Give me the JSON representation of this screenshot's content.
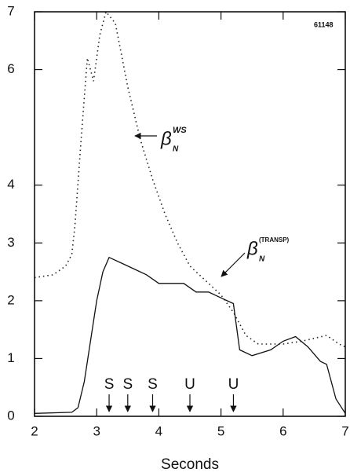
{
  "chart_data": {
    "type": "line",
    "xlabel": "Seconds",
    "id_label": "61148",
    "xlim": [
      2,
      7
    ],
    "xticks": [
      2,
      3,
      4,
      5,
      6,
      7
    ],
    "ylim": [
      0,
      7
    ],
    "yticks": [
      0,
      1,
      2,
      3,
      4,
      6,
      7
    ],
    "series": [
      {
        "name": {
          "symbol": "β",
          "sub": "N",
          "sup": "WS"
        },
        "color": "#222",
        "style": "dotted",
        "x": [
          2.0,
          2.3,
          2.5,
          2.6,
          2.65,
          2.75,
          2.85,
          2.95,
          3.05,
          3.15,
          3.3,
          3.5,
          3.7,
          3.9,
          4.1,
          4.3,
          4.5,
          4.8,
          5.0,
          5.2,
          5.4,
          5.6,
          6.0,
          6.3,
          6.7,
          6.9,
          7.0
        ],
        "values": [
          2.4,
          2.45,
          2.6,
          2.8,
          3.3,
          4.8,
          6.2,
          5.8,
          6.6,
          7.0,
          6.8,
          5.7,
          4.8,
          4.1,
          3.5,
          3.0,
          2.6,
          2.3,
          2.1,
          1.8,
          1.4,
          1.25,
          1.25,
          1.3,
          1.4,
          1.25,
          1.2
        ]
      },
      {
        "name": {
          "symbol": "β",
          "sub": "N",
          "sup": "(TRANSP)"
        },
        "color": "#111",
        "style": "solid",
        "x": [
          2.0,
          2.6,
          2.7,
          2.8,
          2.9,
          3.0,
          3.1,
          3.2,
          3.4,
          3.6,
          3.8,
          4.0,
          4.2,
          4.4,
          4.6,
          4.8,
          5.0,
          5.2,
          5.3,
          5.5,
          5.8,
          6.0,
          6.2,
          6.4,
          6.6,
          6.7,
          6.85,
          7.0
        ],
        "values": [
          0.05,
          0.07,
          0.15,
          0.6,
          1.3,
          2.0,
          2.5,
          2.75,
          2.65,
          2.55,
          2.45,
          2.3,
          2.3,
          2.3,
          2.15,
          2.15,
          2.05,
          1.95,
          1.15,
          1.05,
          1.15,
          1.3,
          1.38,
          1.2,
          0.95,
          0.9,
          0.3,
          0.05
        ]
      }
    ],
    "markers": [
      {
        "label": "S",
        "x": 3.2
      },
      {
        "label": "S",
        "x": 3.5
      },
      {
        "label": "S",
        "x": 3.9
      },
      {
        "label": "U",
        "x": 4.5
      },
      {
        "label": "U",
        "x": 5.2
      }
    ]
  }
}
